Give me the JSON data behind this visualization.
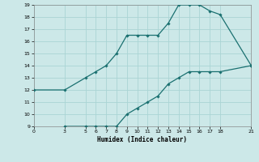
{
  "xlabel": "Humidex (Indice chaleur)",
  "bg_color": "#cce8e8",
  "grid_color": "#aad4d4",
  "line_color": "#1a7070",
  "xlim": [
    0,
    21
  ],
  "ylim": [
    9,
    19
  ],
  "xticks": [
    0,
    3,
    5,
    6,
    7,
    8,
    9,
    10,
    11,
    12,
    13,
    14,
    15,
    16,
    17,
    18,
    21
  ],
  "yticks": [
    9,
    10,
    11,
    12,
    13,
    14,
    15,
    16,
    17,
    18,
    19
  ],
  "upper_x": [
    0,
    3,
    5,
    6,
    7,
    8,
    9,
    10,
    11,
    12,
    13,
    14,
    15,
    16,
    17,
    18,
    21
  ],
  "upper_y": [
    12,
    12,
    13,
    13.5,
    14,
    15,
    16.5,
    16.5,
    16.5,
    16.5,
    17.5,
    19,
    19,
    19,
    18.5,
    18.2,
    14
  ],
  "lower_x": [
    3,
    5,
    6,
    7,
    8,
    9,
    10,
    11,
    12,
    13,
    14,
    15,
    16,
    17,
    18,
    21
  ],
  "lower_y": [
    9,
    9,
    9,
    9,
    9,
    10,
    10.5,
    11,
    11.5,
    12.5,
    13,
    13.5,
    13.5,
    13.5,
    13.5,
    14
  ]
}
